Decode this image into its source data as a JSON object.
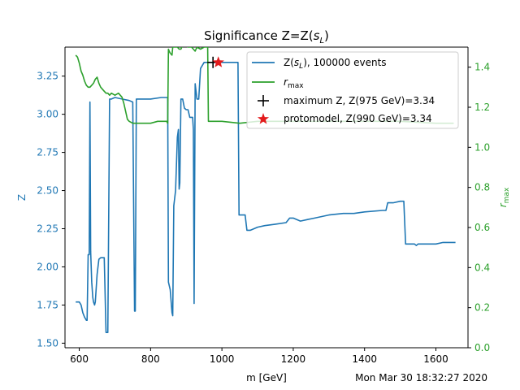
{
  "chart_data": {
    "type": "line",
    "title": "Significance Z=Z(s̃ₗ)",
    "title_prefix": "Significance Z=Z(",
    "title_sub": "L",
    "xlabel": "m [GeV]",
    "ylabel_left": "Z",
    "ylabel_right_main": "r",
    "ylabel_right_sub": "max",
    "timestamp": "Mon Mar 30 18:32:27 2020",
    "xlim": [
      560,
      1690
    ],
    "ylim_left": [
      1.47,
      3.44
    ],
    "ylim_right": [
      0.0,
      1.5
    ],
    "x_ticks": [
      600,
      800,
      1000,
      1200,
      1400,
      1600
    ],
    "y_left_ticks": [
      "1.50",
      "1.75",
      "2.00",
      "2.25",
      "2.50",
      "2.75",
      "3.00",
      "3.25"
    ],
    "y_right_ticks": [
      "0.0",
      "0.2",
      "0.4",
      "0.6",
      "0.8",
      "1.0",
      "1.2",
      "1.4"
    ],
    "colors": {
      "z": "#1f77b4",
      "rmax": "#2ca02c",
      "max_marker": "#000000",
      "protomodel": "#e31a1c"
    },
    "legend": {
      "placement": "upper right",
      "z_label_prefix": "Z(",
      "z_label_sub": "L",
      "z_label_suffix": "), 100000 events",
      "rmax_label_main": "r",
      "rmax_label_sub": "max",
      "max_label": "maximum Z, Z(975 GeV)=3.34",
      "proto_label": "protomodel, Z(990 GeV)=3.34"
    },
    "markers": {
      "maximum": {
        "x": 975,
        "y": 3.34
      },
      "protomodel": {
        "x": 990,
        "y": 3.34
      }
    },
    "series": [
      {
        "axis": "left",
        "x": [
          590,
          600,
          605,
          610,
          615,
          620,
          622,
          625,
          628,
          630,
          632,
          635,
          638,
          640,
          643,
          645,
          650,
          655,
          660,
          665,
          670,
          675,
          678,
          680,
          685,
          690,
          700,
          720,
          740,
          750,
          755,
          757,
          760,
          765,
          780,
          800,
          830,
          845,
          848,
          850,
          855,
          860,
          862,
          865,
          870,
          875,
          878,
          880,
          882,
          885,
          890,
          895,
          900,
          905,
          910,
          915,
          918,
          920,
          922,
          925,
          930,
          935,
          940,
          950,
          960,
          975,
          985,
          1000,
          1010,
          1030,
          1045,
          1048,
          1055,
          1065,
          1070,
          1080,
          1100,
          1120,
          1150,
          1180,
          1190,
          1200,
          1220,
          1240,
          1260,
          1300,
          1340,
          1370,
          1400,
          1450,
          1460,
          1465,
          1470,
          1475,
          1480,
          1500,
          1510,
          1515,
          1520,
          1540,
          1545,
          1550,
          1580,
          1600,
          1620,
          1640,
          1655
        ],
        "values": [
          1.77,
          1.77,
          1.75,
          1.7,
          1.67,
          1.65,
          1.65,
          2.08,
          2.08,
          3.08,
          2.1,
          1.9,
          1.8,
          1.77,
          1.75,
          1.77,
          1.95,
          2.05,
          2.06,
          2.06,
          2.06,
          1.57,
          1.57,
          1.57,
          3.1,
          3.1,
          3.11,
          3.1,
          3.09,
          3.08,
          1.71,
          1.71,
          3.1,
          3.1,
          3.1,
          3.1,
          3.11,
          3.11,
          3.11,
          1.9,
          1.85,
          1.7,
          1.68,
          2.4,
          2.5,
          2.85,
          2.9,
          2.51,
          2.55,
          3.1,
          3.1,
          3.04,
          3.03,
          3.03,
          2.98,
          2.98,
          2.98,
          2.9,
          1.76,
          3.2,
          3.1,
          3.1,
          3.3,
          3.34,
          3.34,
          3.34,
          3.34,
          3.34,
          3.34,
          3.34,
          3.34,
          2.34,
          2.34,
          2.34,
          2.24,
          2.24,
          2.26,
          2.27,
          2.28,
          2.29,
          2.32,
          2.32,
          2.3,
          2.31,
          2.32,
          2.34,
          2.35,
          2.35,
          2.36,
          2.37,
          2.37,
          2.42,
          2.42,
          2.42,
          2.42,
          2.43,
          2.43,
          2.15,
          2.15,
          2.15,
          2.14,
          2.15,
          2.15,
          2.15,
          2.16,
          2.16,
          2.16
        ]
      },
      {
        "axis": "right",
        "x": [
          590,
          595,
          600,
          605,
          610,
          615,
          620,
          625,
          630,
          635,
          640,
          645,
          650,
          655,
          660,
          665,
          670,
          675,
          680,
          685,
          690,
          700,
          710,
          715,
          720,
          725,
          730,
          735,
          740,
          750,
          770,
          800,
          820,
          840,
          845,
          848,
          850,
          852,
          855,
          860,
          862,
          865,
          870,
          875,
          880,
          885,
          890,
          900,
          905,
          910,
          915,
          920,
          925,
          930,
          940,
          950,
          960,
          962,
          965,
          1000,
          1050,
          1100,
          1150,
          1200,
          1300,
          1400,
          1500,
          1600,
          1650
        ],
        "values": [
          1.46,
          1.45,
          1.42,
          1.38,
          1.36,
          1.33,
          1.31,
          1.3,
          1.3,
          1.31,
          1.32,
          1.34,
          1.35,
          1.32,
          1.3,
          1.29,
          1.28,
          1.27,
          1.27,
          1.26,
          1.27,
          1.26,
          1.27,
          1.26,
          1.25,
          1.22,
          1.18,
          1.14,
          1.13,
          1.12,
          1.12,
          1.12,
          1.13,
          1.13,
          1.13,
          1.12,
          1.49,
          1.48,
          1.47,
          1.46,
          1.5,
          1.5,
          1.5,
          1.5,
          1.49,
          1.49,
          1.51,
          1.51,
          1.5,
          1.5,
          1.5,
          1.49,
          1.48,
          1.5,
          1.49,
          1.5,
          1.5,
          1.13,
          1.13,
          1.13,
          1.12,
          1.13,
          1.13,
          1.13,
          1.13,
          1.13,
          1.13,
          1.12,
          1.12
        ]
      }
    ]
  }
}
